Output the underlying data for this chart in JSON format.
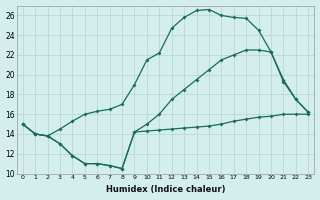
{
  "xlabel": "Humidex (Indice chaleur)",
  "bg_color": "#d4eeee",
  "grid_color": "#b8d8d8",
  "line_color": "#1a6b5a",
  "xlim": [
    -0.5,
    23.5
  ],
  "ylim": [
    10,
    27
  ],
  "yticks": [
    10,
    12,
    14,
    16,
    18,
    20,
    22,
    24,
    26
  ],
  "xticks": [
    0,
    1,
    2,
    3,
    4,
    5,
    6,
    7,
    8,
    9,
    10,
    11,
    12,
    13,
    14,
    15,
    16,
    17,
    18,
    19,
    20,
    21,
    22,
    23
  ],
  "line1_x": [
    0,
    1,
    2,
    3,
    4,
    5,
    6,
    7,
    8,
    9,
    10,
    11,
    12,
    13,
    14,
    15,
    16,
    17,
    18,
    19,
    20,
    21,
    22,
    23
  ],
  "line1_y": [
    15,
    14,
    13.8,
    13,
    11.8,
    11,
    11,
    10.8,
    10.5,
    14.2,
    14.3,
    14.4,
    14.5,
    14.6,
    14.7,
    14.8,
    15,
    15.3,
    15.5,
    15.7,
    15.8,
    16,
    16,
    16
  ],
  "line2_x": [
    0,
    1,
    2,
    3,
    4,
    5,
    6,
    7,
    8,
    9,
    10,
    11,
    12,
    13,
    14,
    15,
    16,
    17,
    18,
    19,
    20,
    21,
    22,
    23
  ],
  "line2_y": [
    15,
    14,
    13.8,
    14.5,
    15.3,
    16,
    16.3,
    16.5,
    17,
    19,
    21.5,
    22.2,
    24.7,
    25.8,
    26.5,
    26.6,
    26,
    25.8,
    25.7,
    24.5,
    22.3,
    19.5,
    17.5,
    16.2
  ],
  "line3_x": [
    0,
    1,
    2,
    3,
    4,
    5,
    6,
    7,
    8,
    9,
    10,
    11,
    12,
    13,
    14,
    15,
    16,
    17,
    18,
    19,
    20,
    21,
    22,
    23
  ],
  "line3_y": [
    15,
    14,
    13.8,
    13,
    11.8,
    11,
    11,
    10.8,
    10.5,
    14.2,
    15,
    16,
    17.5,
    18.5,
    19.5,
    20.5,
    21.5,
    22,
    22.5,
    22.5,
    22.3,
    19.3,
    17.5,
    16.2
  ]
}
